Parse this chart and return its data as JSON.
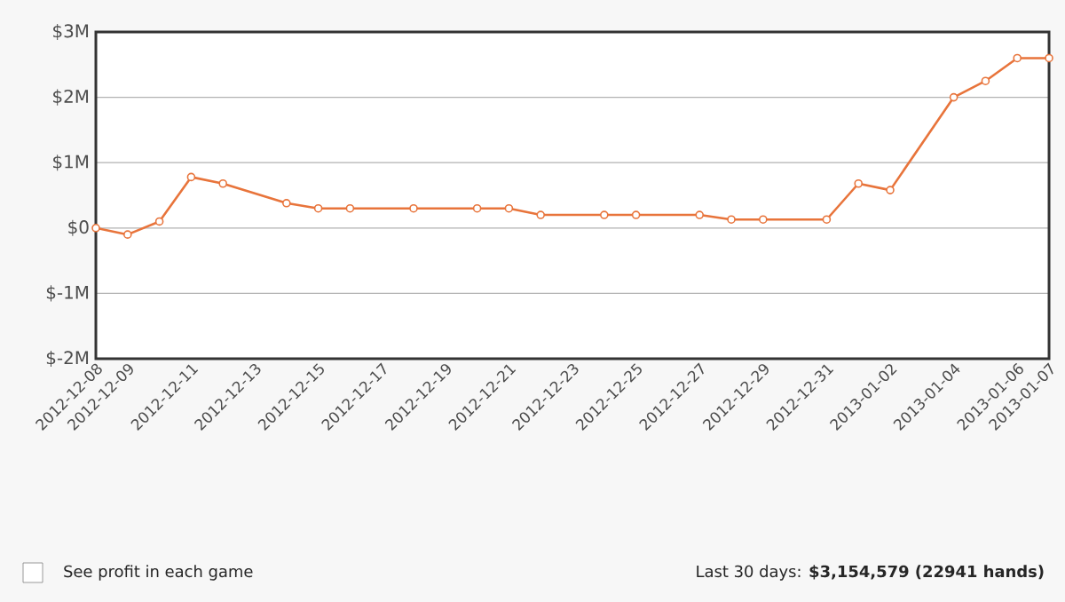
{
  "chart_data": {
    "type": "line",
    "x": [
      "2012-12-08",
      "2012-12-09",
      "2012-12-10",
      "2012-12-11",
      "2012-12-12",
      "2012-12-14",
      "2012-12-15",
      "2012-12-16",
      "2012-12-18",
      "2012-12-20",
      "2012-12-21",
      "2012-12-22",
      "2012-12-24",
      "2012-12-25",
      "2012-12-27",
      "2012-12-28",
      "2012-12-29",
      "2012-12-31",
      "2013-01-01",
      "2013-01-02",
      "2013-01-04",
      "2013-01-05",
      "2013-01-06",
      "2013-01-07"
    ],
    "series": [
      {
        "color": "#e8743b",
        "values": [
          0,
          -100000,
          100000,
          780000,
          680000,
          380000,
          300000,
          300000,
          300000,
          300000,
          300000,
          200000,
          200000,
          200000,
          200000,
          130000,
          130000,
          130000,
          680000,
          580000,
          2000000,
          2250000,
          2600000,
          2600000
        ]
      }
    ],
    "xlim": [
      "2012-12-08",
      "2013-01-07"
    ],
    "xticks": [
      {
        "value": "2012-12-08",
        "label": "2012-12-08"
      },
      {
        "value": "2012-12-09",
        "label": "2012-12-09"
      },
      {
        "value": "2012-12-11",
        "label": "2012-12-11"
      },
      {
        "value": "2012-12-13",
        "label": "2012-12-13"
      },
      {
        "value": "2012-12-15",
        "label": "2012-12-15"
      },
      {
        "value": "2012-12-17",
        "label": "2012-12-17"
      },
      {
        "value": "2012-12-19",
        "label": "2012-12-19"
      },
      {
        "value": "2012-12-21",
        "label": "2012-12-21"
      },
      {
        "value": "2012-12-23",
        "label": "2012-12-23"
      },
      {
        "value": "2012-12-25",
        "label": "2012-12-25"
      },
      {
        "value": "2012-12-27",
        "label": "2012-12-27"
      },
      {
        "value": "2012-12-29",
        "label": "2012-12-29"
      },
      {
        "value": "2012-12-31",
        "label": "2012-12-31"
      },
      {
        "value": "2013-01-02",
        "label": "2013-01-02"
      },
      {
        "value": "2013-01-04",
        "label": "2013-01-04"
      },
      {
        "value": "2013-01-06",
        "label": "2013-01-06"
      },
      {
        "value": "2013-01-07",
        "label": "2013-01-07"
      }
    ],
    "ylim": [
      -2000000,
      3000000
    ],
    "yticks": [
      {
        "value": -2000000,
        "label": "$-2M"
      },
      {
        "value": -1000000,
        "label": "$-1M"
      },
      {
        "value": 0,
        "label": "$0"
      },
      {
        "value": 1000000,
        "label": "$1M"
      },
      {
        "value": 2000000,
        "label": "$2M"
      },
      {
        "value": 3000000,
        "label": "$3M"
      }
    ],
    "grid": "y",
    "marker": "circle",
    "line_style": "solid",
    "annotations": [
      "See profit in each game",
      "Last 30 days: **$3,154,579 (22941 hands)**"
    ]
  }
}
